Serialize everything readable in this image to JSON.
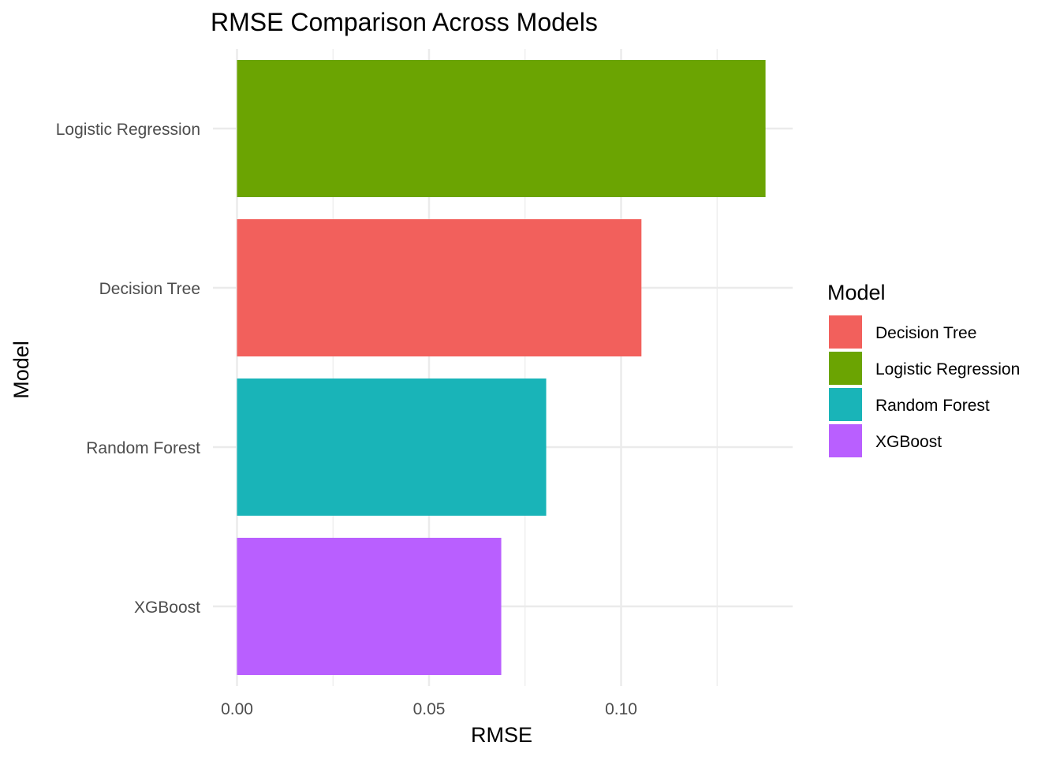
{
  "chart_data": {
    "type": "bar",
    "orientation": "horizontal",
    "title": "RMSE Comparison Across Models",
    "xlabel": "RMSE",
    "ylabel": "Model",
    "categories": [
      "XGBoost",
      "Random Forest",
      "Decision Tree",
      "Logistic Regression"
    ],
    "values": [
      0.0688,
      0.0805,
      0.1053,
      0.1376
    ],
    "colors": [
      "#B95FFF",
      "#19B4B8",
      "#F2605C",
      "#6BA402"
    ],
    "xlim": [
      0,
      0.1445
    ],
    "x_ticks": [
      0.0,
      0.05,
      0.1
    ],
    "x_tick_labels": [
      "0.00",
      "0.05",
      "0.10"
    ],
    "x_minor_ticks": [
      0.025,
      0.075,
      0.125
    ],
    "grid": true,
    "legend": {
      "title": "Model",
      "position": "right",
      "items": [
        {
          "label": "Decision Tree",
          "color": "#F2605C"
        },
        {
          "label": "Logistic Regression",
          "color": "#6BA402"
        },
        {
          "label": "Random Forest",
          "color": "#19B4B8"
        },
        {
          "label": "XGBoost",
          "color": "#B95FFF"
        }
      ]
    }
  }
}
